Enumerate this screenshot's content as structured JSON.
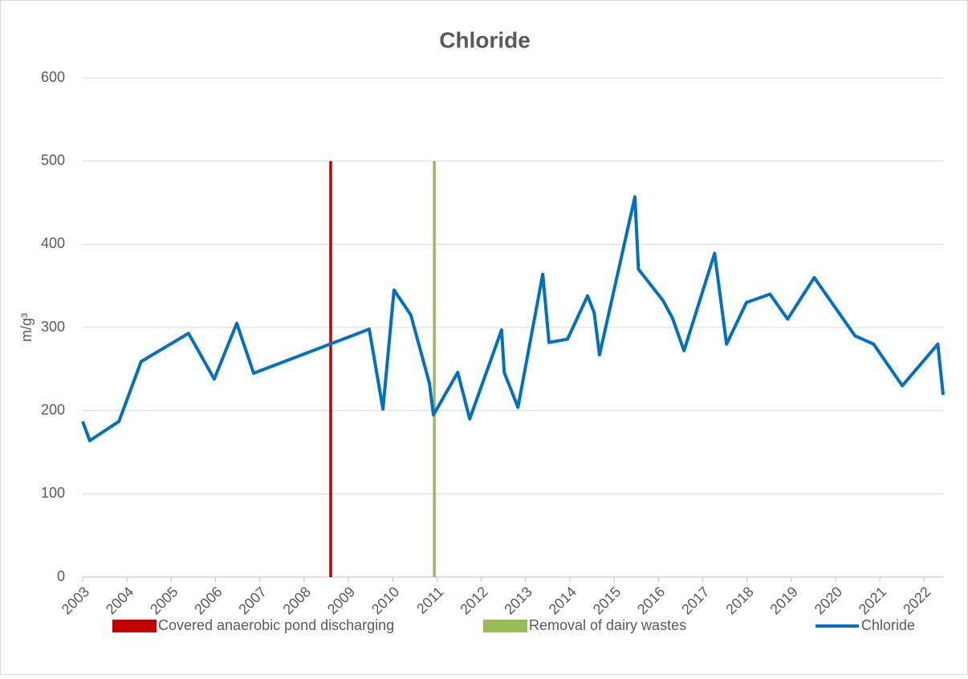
{
  "chart_data": {
    "type": "line",
    "title": "Chloride",
    "y_label": "m/g³",
    "xlim": [
      2003,
      2022.43
    ],
    "xticks": [
      2003,
      2004,
      2005,
      2006,
      2007,
      2008,
      2009,
      2010,
      2011,
      2012,
      2013,
      2014,
      2015,
      2016,
      2017,
      2018,
      2019,
      2020,
      2021,
      2022
    ],
    "ylim": [
      0,
      600
    ],
    "yticks": [
      0,
      100,
      200,
      300,
      400,
      500,
      600
    ],
    "grid": true,
    "legend": "bottom",
    "series": [
      {
        "name": "Covered anaerobic pond discharging",
        "color": "#c00000",
        "marker": "bar",
        "x": [
          2008.6,
          2008.6
        ],
        "values": [
          0,
          500
        ]
      },
      {
        "name": "Removal of dairy wastes",
        "color": "#9bbb59",
        "marker": "bar",
        "x": [
          2010.94,
          2010.94
        ],
        "values": [
          0,
          500
        ]
      },
      {
        "name": "Chloride",
        "color": "#0070c0",
        "marker": "line",
        "x": [
          2003.0,
          2003.16,
          2003.82,
          2004.32,
          2005.39,
          2005.97,
          2006.48,
          2006.86,
          2009.47,
          2009.78,
          2010.03,
          2010.41,
          2010.83,
          2010.92,
          2011.47,
          2011.74,
          2012.46,
          2012.52,
          2012.83,
          2013.39,
          2013.53,
          2013.95,
          2014.4,
          2014.55,
          2014.67,
          2015.47,
          2015.55,
          2016.11,
          2016.32,
          2016.58,
          2017.27,
          2017.54,
          2017.99,
          2018.52,
          2018.92,
          2019.52,
          2020.44,
          2020.86,
          2021.51,
          2022.31,
          2022.43
        ],
        "values": [
          187,
          164,
          187,
          259,
          293,
          238,
          305,
          245,
          298,
          202,
          345,
          315,
          233,
          195,
          246,
          190,
          297,
          246,
          204,
          364,
          282,
          286,
          338,
          318,
          267,
          457,
          370,
          332,
          311,
          272,
          389,
          280,
          330,
          340,
          310,
          360,
          290,
          280,
          230,
          280,
          219
        ]
      }
    ]
  }
}
